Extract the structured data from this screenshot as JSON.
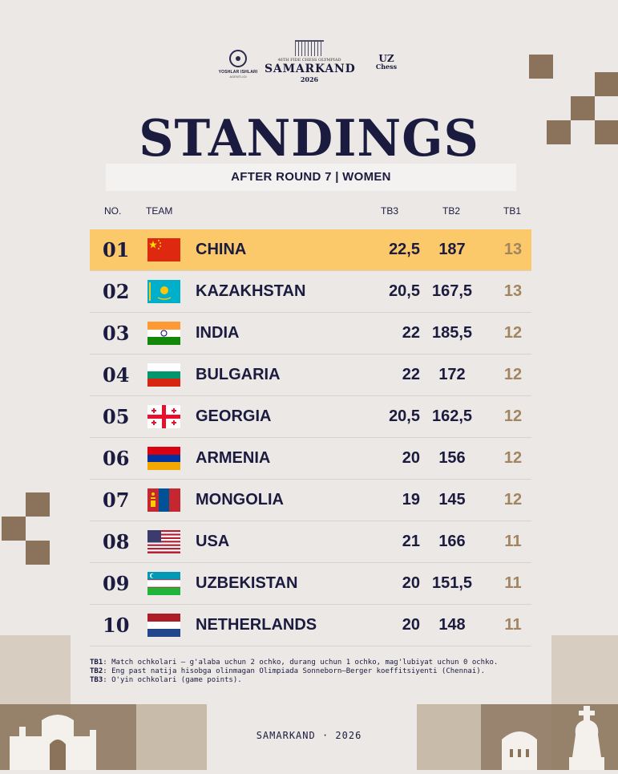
{
  "logos": {
    "left": {
      "line1": "YOSHLAR ISHLARI",
      "line2": "AGENTLIGI"
    },
    "center": {
      "subtitle": "46TH FIDE CHESS OLYMPIAD",
      "name": "SAMARKAND",
      "year": "2026"
    },
    "right": {
      "line1": "UZ",
      "line2": "Chess"
    }
  },
  "title": "STANDINGS",
  "subtitle": "AFTER ROUND 7 | WOMEN",
  "headers": {
    "no": "NO.",
    "team": "TEAM",
    "tb3": "TB3",
    "tb2": "TB2",
    "tb1": "TB1"
  },
  "rows": [
    {
      "no": "01",
      "team": "CHINA",
      "tb3": "22,5",
      "tb2": "187",
      "tb1": "13",
      "flag": "china"
    },
    {
      "no": "02",
      "team": "KAZAKHSTAN",
      "tb3": "20,5",
      "tb2": "167,5",
      "tb1": "13",
      "flag": "kazakhstan"
    },
    {
      "no": "03",
      "team": "INDIA",
      "tb3": "22",
      "tb2": "185,5",
      "tb1": "12",
      "flag": "india"
    },
    {
      "no": "04",
      "team": "BULGARIA",
      "tb3": "22",
      "tb2": "172",
      "tb1": "12",
      "flag": "bulgaria"
    },
    {
      "no": "05",
      "team": "GEORGIA",
      "tb3": "20,5",
      "tb2": "162,5",
      "tb1": "12",
      "flag": "georgia"
    },
    {
      "no": "06",
      "team": "ARMENIA",
      "tb3": "20",
      "tb2": "156",
      "tb1": "12",
      "flag": "armenia"
    },
    {
      "no": "07",
      "team": "MONGOLIA",
      "tb3": "19",
      "tb2": "145",
      "tb1": "12",
      "flag": "mongolia"
    },
    {
      "no": "08",
      "team": "USA",
      "tb3": "21",
      "tb2": "166",
      "tb1": "11",
      "flag": "usa"
    },
    {
      "no": "09",
      "team": "UZBEKISTAN",
      "tb3": "20",
      "tb2": "151,5",
      "tb1": "11",
      "flag": "uzbekistan"
    },
    {
      "no": "10",
      "team": "NETHERLANDS",
      "tb3": "20",
      "tb2": "148",
      "tb1": "11",
      "flag": "netherlands"
    }
  ],
  "notes": [
    {
      "label": "TB1",
      "text": ": Match ochkolari — g'alaba uchun 2 ochko, durang uchun 1 ochko, mag'lubiyat uchun 0 ochko."
    },
    {
      "label": "TB2",
      "text": ": Eng past natija hisobga olinmagan Olimpiada Sonneborn–Berger koeffitsiyenti (Chennai)."
    },
    {
      "label": "TB3",
      "text": ": O'yin ochkolari (game points)."
    }
  ],
  "footer": "SAMARKAND · 2026",
  "colors": {
    "highlight": "#fbc96a",
    "navy": "#1b1b3f",
    "tb1": "#a28560",
    "brown": "#8b735b"
  }
}
